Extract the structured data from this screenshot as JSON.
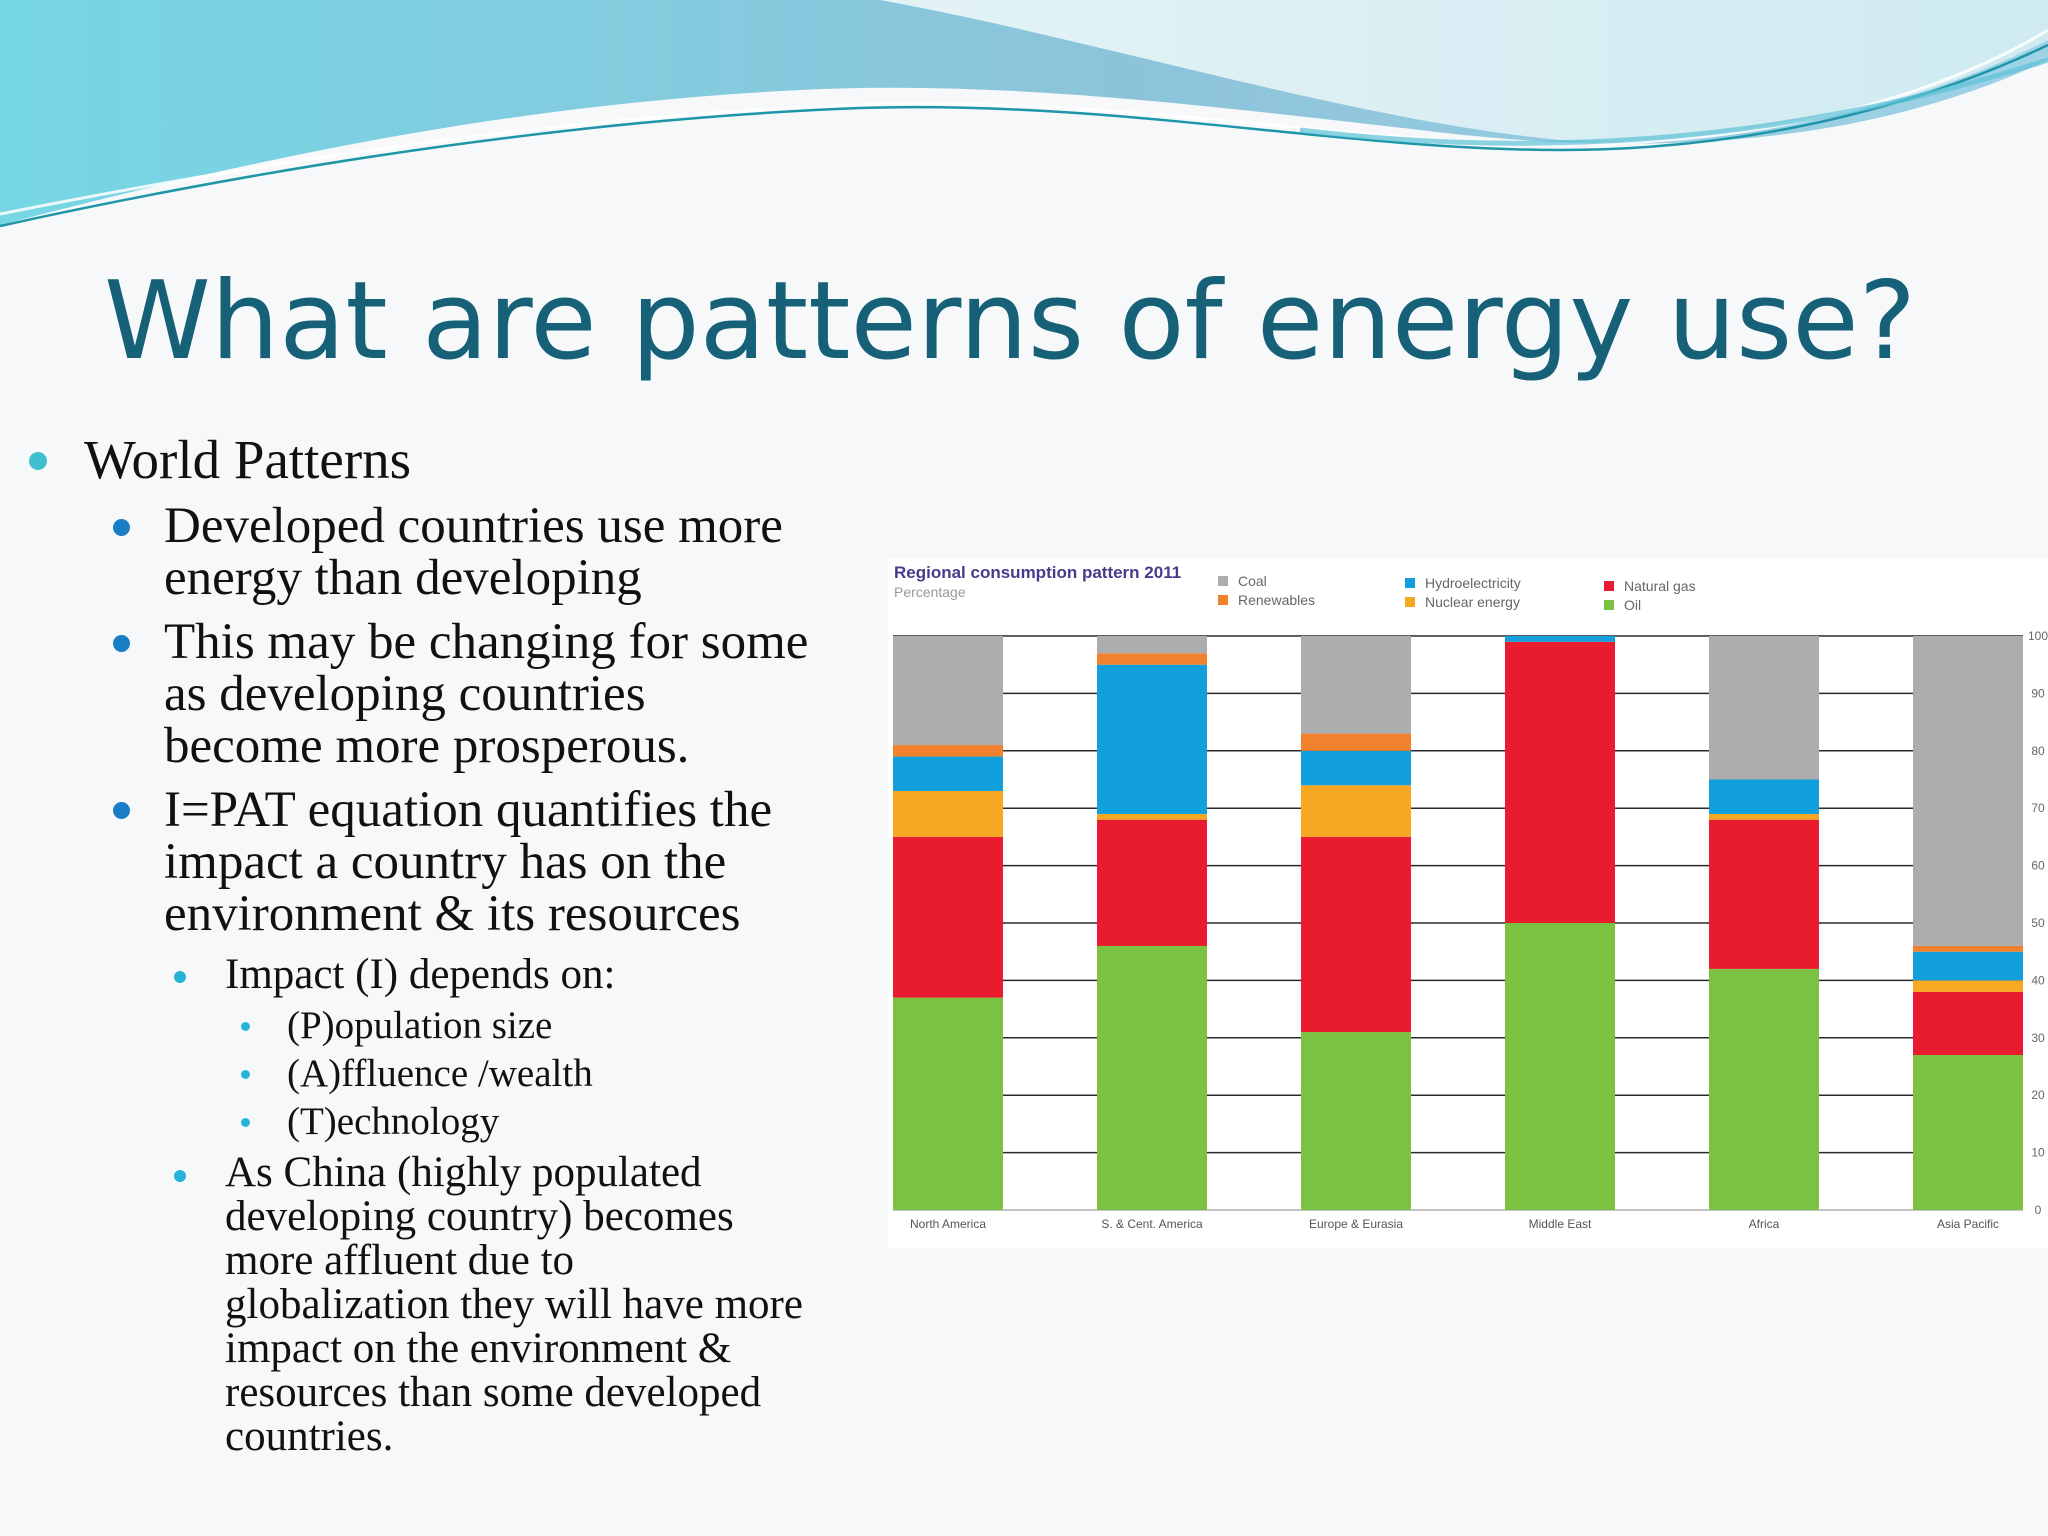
{
  "slide": {
    "title": "What are patterns of energy use?",
    "bullets": [
      {
        "level": 1,
        "text": "World Patterns"
      },
      {
        "level": 2,
        "lines": [
          "Developed countries use more",
          "energy than developing"
        ]
      },
      {
        "level": 2,
        "lines": [
          "This may be changing for some",
          "as developing countries",
          "become more prosperous."
        ]
      },
      {
        "level": 2,
        "lines": [
          "I=PAT equation quantifies the",
          "impact a country has on the",
          "environment & its resources"
        ]
      },
      {
        "level": 3,
        "text": "Impact (I) depends on:"
      },
      {
        "level": 4,
        "text": "(P)opulation size"
      },
      {
        "level": 4,
        "text": "(A)ffluence /wealth"
      },
      {
        "level": 4,
        "text": "(T)echnology"
      },
      {
        "level": 3,
        "lines": [
          "As China (highly populated",
          "developing country) becomes",
          "more affluent due to",
          "globalization they will have more",
          "impact on the environment &",
          "resources than some developed",
          "countries."
        ]
      }
    ],
    "colors": {
      "title": "#166078",
      "bullet_l1": "#3fc0cf",
      "bullet_l2": "#1a7ec6",
      "bullet_l3": "#27b3d6"
    }
  },
  "chart_data": {
    "type": "bar",
    "stacked": true,
    "title": "Regional consumption pattern 2011",
    "subtitle": "Percentage",
    "categories": [
      "North America",
      "S. & Cent. America",
      "Europe & Eurasia",
      "Middle East",
      "Africa",
      "Asia Pacific"
    ],
    "series": [
      {
        "name": "Oil",
        "color": "#7bc142",
        "values": [
          37,
          46,
          31,
          50,
          42,
          27
        ]
      },
      {
        "name": "Natural gas",
        "color": "#e81c2e",
        "values": [
          28,
          22,
          34,
          49,
          26,
          11
        ]
      },
      {
        "name": "Nuclear energy",
        "color": "#f7a823",
        "values": [
          8,
          1,
          9,
          0,
          1,
          2
        ]
      },
      {
        "name": "Hydroelectricity",
        "color": "#11a0dc",
        "values": [
          6,
          26,
          6,
          1,
          6,
          5
        ]
      },
      {
        "name": "Renewables",
        "color": "#f1812c",
        "values": [
          2,
          2,
          3,
          0,
          0,
          1
        ]
      },
      {
        "name": "Coal",
        "color": "#adadb0",
        "values": [
          19,
          3,
          17,
          0,
          25,
          54
        ]
      }
    ],
    "legend_order": [
      "Coal",
      "Renewables",
      "Hydroelectricity",
      "Nuclear energy",
      "Natural gas",
      "Oil"
    ],
    "ylim": [
      0,
      100
    ],
    "yticks": [
      0,
      10,
      20,
      30,
      40,
      50,
      60,
      70,
      80,
      90,
      100
    ],
    "grid": true,
    "legend_position": "top"
  }
}
